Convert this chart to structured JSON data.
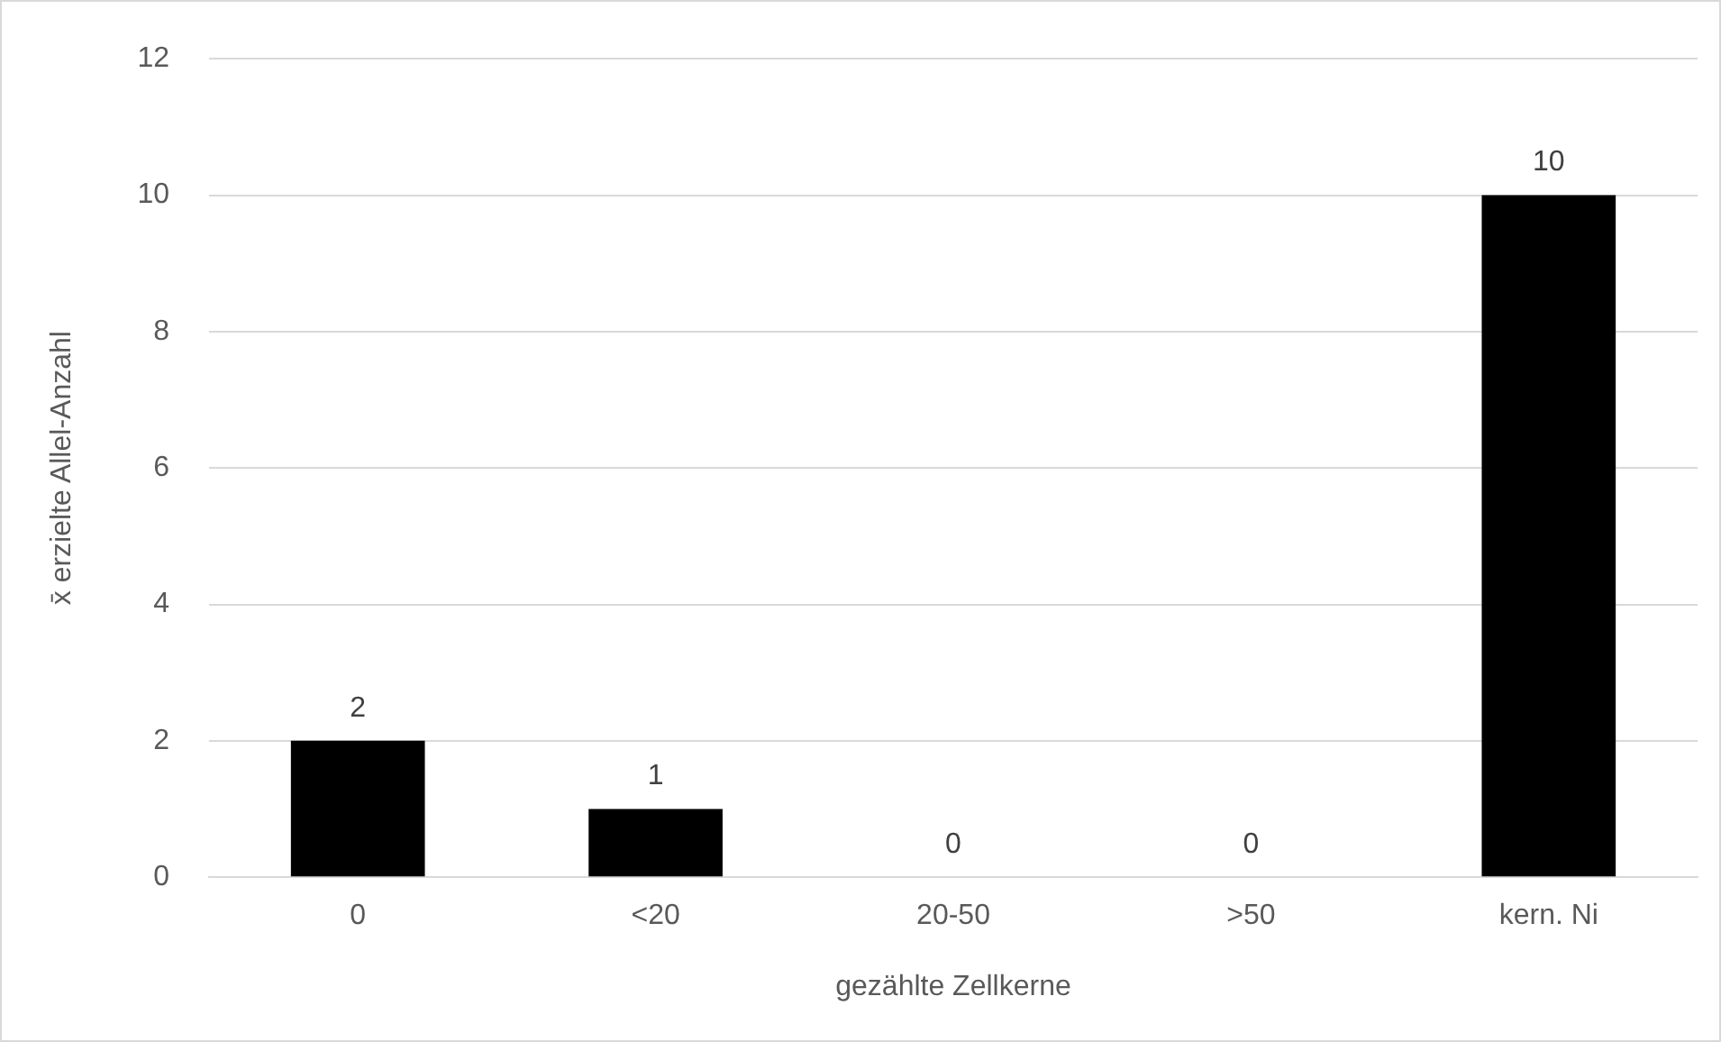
{
  "chart_data": {
    "type": "bar",
    "xlabel": "gezählte Zellkerne",
    "ylabel": "x̄ erzielte Allel-Anzahl",
    "categories": [
      "0",
      "<20",
      "20-50",
      ">50",
      "kern. Ni"
    ],
    "values": [
      2,
      1,
      0,
      0,
      10
    ],
    "color": "#000000",
    "ylim": [
      0,
      12
    ],
    "yticks": [
      0,
      2,
      4,
      6,
      8,
      10,
      12
    ],
    "grid": "y",
    "data_labels": true,
    "legend": false
  }
}
